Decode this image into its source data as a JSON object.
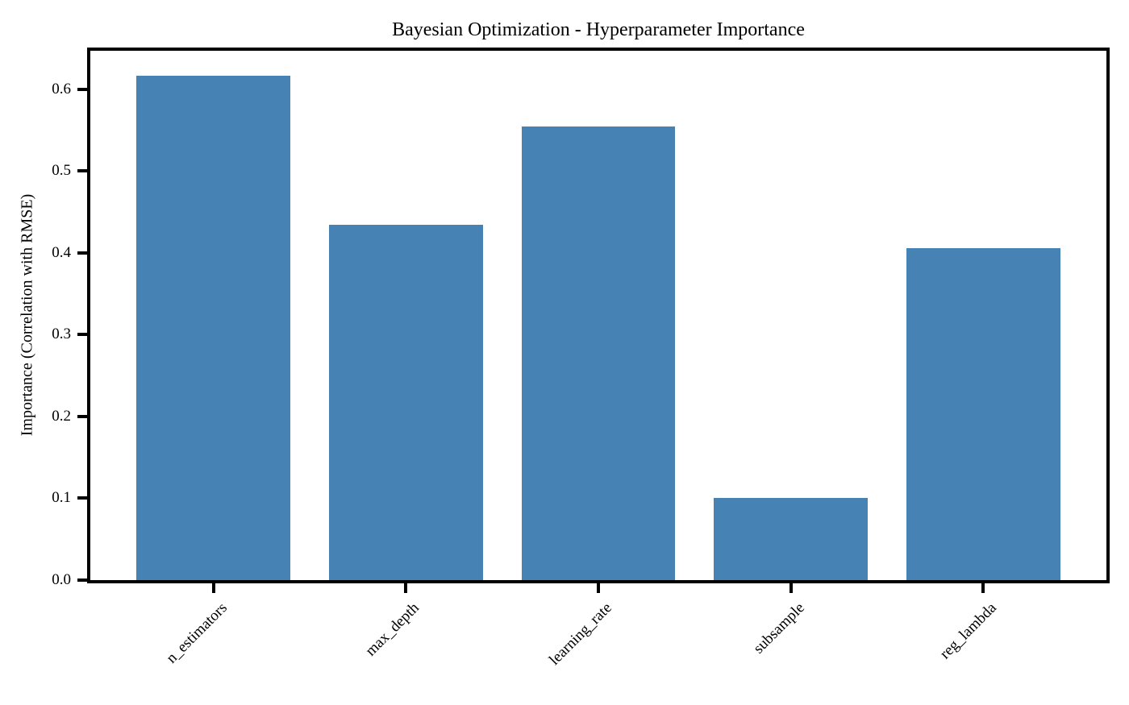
{
  "chart_data": {
    "type": "bar",
    "title": "Bayesian Optimization - Hyperparameter Importance",
    "ylabel": "Importance (Correlation with RMSE)",
    "xlabel": "",
    "categories": [
      "n_estimators",
      "max_depth",
      "learning_rate",
      "subsample",
      "reg_lambda"
    ],
    "values": [
      0.616,
      0.434,
      0.554,
      0.1,
      0.406
    ],
    "ylim": [
      0,
      0.647
    ],
    "ytick_labels": [
      "0.0",
      "0.1",
      "0.2",
      "0.3",
      "0.4",
      "0.5",
      "0.6"
    ],
    "xtick_rotation_deg": 45,
    "bar_color": "#4682b4",
    "axis_color": "#000000",
    "background_color": "#ffffff",
    "grid": false,
    "legend": null,
    "bar_width_fraction": 0.8,
    "x_margin_units": 0.64
  }
}
